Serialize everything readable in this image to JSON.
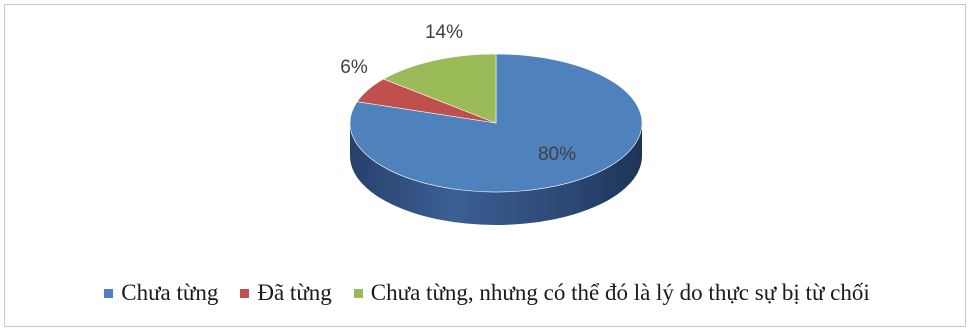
{
  "chart_data": {
    "type": "pie",
    "style": "3d",
    "title": "",
    "slices": [
      {
        "label": "Chưa từng",
        "value": 80,
        "data_label": "80%",
        "color": "#4f81bd",
        "side_color": "#2e4a73"
      },
      {
        "label": "Đã từng",
        "value": 6,
        "data_label": "6%",
        "color": "#c0504d",
        "side_color": "#7a2f2d"
      },
      {
        "label": "Chưa từng, nhưng có thể đó là lý do thực sự bị từ chối",
        "value": 14,
        "data_label": "14%",
        "color": "#9bbb59",
        "side_color": "#5f7a2f"
      }
    ],
    "legend_placement": "bottom"
  }
}
